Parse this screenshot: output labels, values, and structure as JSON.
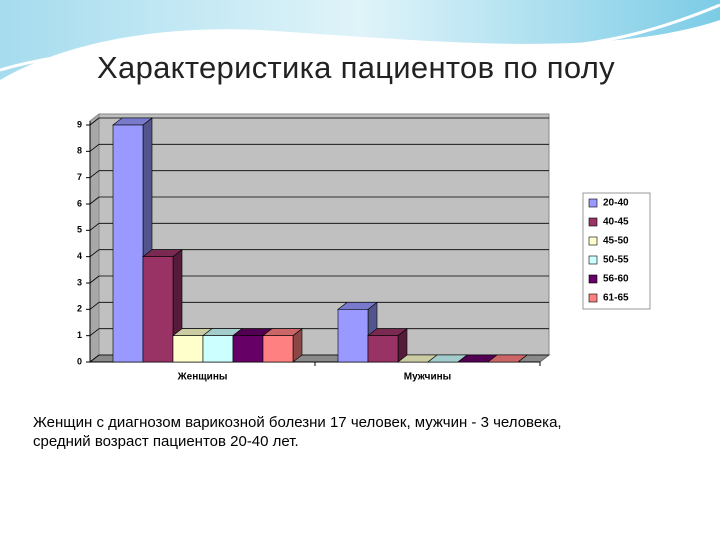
{
  "chart_data": {
    "type": "bar",
    "title": "Характеристика пациентов по полу",
    "categories": [
      "Женщины",
      "Мужчины"
    ],
    "series": [
      {
        "name": "20-40",
        "color": "#9999ff",
        "values": [
          9,
          2
        ]
      },
      {
        "name": "40-45",
        "color": "#993366",
        "values": [
          4,
          1
        ]
      },
      {
        "name": "45-50",
        "color": "#ffffcc",
        "values": [
          1,
          0
        ]
      },
      {
        "name": "50-55",
        "color": "#ccffff",
        "values": [
          1,
          0
        ]
      },
      {
        "name": "56-60",
        "color": "#660066",
        "values": [
          1,
          0
        ]
      },
      {
        "name": "61-65",
        "color": "#ff8080",
        "values": [
          1,
          0
        ]
      }
    ],
    "ylim": [
      0,
      9
    ],
    "yticks": [
      0,
      1,
      2,
      3,
      4,
      5,
      6,
      7,
      8,
      9
    ],
    "grid": true,
    "legend": "right"
  },
  "text": [
    "Женщин с диагнозом варикозной болезни 17 человек, мужчин - 3 человека,",
    "средний возраст пациентов  20-40 лет."
  ]
}
